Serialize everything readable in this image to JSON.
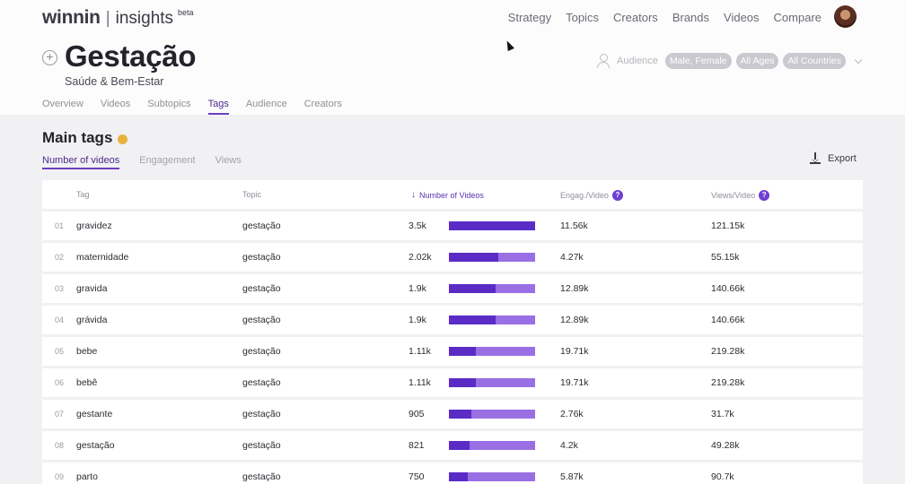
{
  "app": {
    "logo_main": "winnin",
    "logo_sep": "|",
    "logo_sub": "insights",
    "logo_beta": "beta"
  },
  "topnav": [
    "Strategy",
    "Topics",
    "Creators",
    "Brands",
    "Videos",
    "Compare"
  ],
  "page": {
    "add_symbol": "+",
    "title": "Gestação",
    "subtitle": "Saúde & Bem-Estar"
  },
  "filters": {
    "audience_label": "Audience",
    "chips": [
      "Male, Female",
      "All Ages",
      "All Countries"
    ]
  },
  "tabs": [
    {
      "label": "Overview",
      "active": false
    },
    {
      "label": "Videos",
      "active": false
    },
    {
      "label": "Subtopics",
      "active": false
    },
    {
      "label": "Tags",
      "active": true
    },
    {
      "label": "Audience",
      "active": false
    },
    {
      "label": "Creators",
      "active": false
    }
  ],
  "section": {
    "title": "Main tags",
    "subtabs": [
      {
        "label": "Number of videos",
        "active": true
      },
      {
        "label": "Engagement",
        "active": false
      },
      {
        "label": "Views",
        "active": false
      }
    ],
    "export_label": "Export"
  },
  "table": {
    "columns": {
      "tag": "Tag",
      "topic": "Topic",
      "videos": "Number of Videos",
      "engagement": "Engag./Video",
      "views": "Views/Video",
      "help": "?"
    },
    "rows": [
      {
        "rank": "01",
        "tag": "gravidez",
        "topic": "gestação",
        "count": "3.5k",
        "fraction": 1.0,
        "engagement": "11.56k",
        "views": "121.15k"
      },
      {
        "rank": "02",
        "tag": "maternidade",
        "topic": "gestação",
        "count": "2.02k",
        "fraction": 0.577,
        "engagement": "4.27k",
        "views": "55.15k"
      },
      {
        "rank": "03",
        "tag": "gravida",
        "topic": "gestação",
        "count": "1.9k",
        "fraction": 0.543,
        "engagement": "12.89k",
        "views": "140.66k"
      },
      {
        "rank": "04",
        "tag": "grávida",
        "topic": "gestação",
        "count": "1.9k",
        "fraction": 0.543,
        "engagement": "12.89k",
        "views": "140.66k"
      },
      {
        "rank": "05",
        "tag": "bebe",
        "topic": "gestação",
        "count": "1.11k",
        "fraction": 0.317,
        "engagement": "19.71k",
        "views": "219.28k"
      },
      {
        "rank": "06",
        "tag": "bebê",
        "topic": "gestação",
        "count": "1.11k",
        "fraction": 0.317,
        "engagement": "19.71k",
        "views": "219.28k"
      },
      {
        "rank": "07",
        "tag": "gestante",
        "topic": "gestação",
        "count": "905",
        "fraction": 0.259,
        "engagement": "2.76k",
        "views": "31.7k"
      },
      {
        "rank": "08",
        "tag": "gestação",
        "topic": "gestação",
        "count": "821",
        "fraction": 0.235,
        "engagement": "4.2k",
        "views": "49.28k"
      },
      {
        "rank": "09",
        "tag": "parto",
        "topic": "gestação",
        "count": "750",
        "fraction": 0.214,
        "engagement": "5.87k",
        "views": "90.7k"
      }
    ]
  },
  "colors": {
    "accent": "#5a2cc5",
    "bar_bg": "#9b6fe4",
    "info_dot": "#e9b23c",
    "chip_bg": "#c9c9cf"
  }
}
